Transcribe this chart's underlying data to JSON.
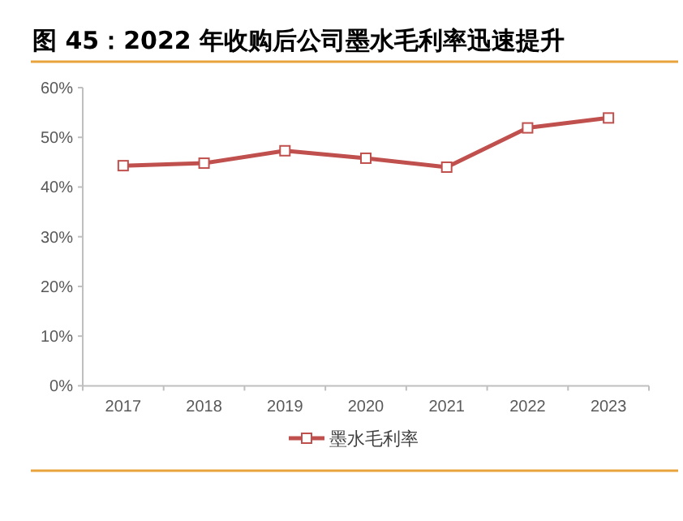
{
  "chart_data": {
    "type": "line",
    "title": "图 45：2022 年收购后公司墨水毛利率迅速提升",
    "categories": [
      "2017",
      "2018",
      "2019",
      "2020",
      "2021",
      "2022",
      "2023"
    ],
    "series": [
      {
        "name": "墨水毛利率",
        "color": "#c0504d",
        "values": [
          44.3,
          44.8,
          47.3,
          45.8,
          44.0,
          51.9,
          53.9
        ]
      }
    ],
    "ylim": [
      0,
      60
    ],
    "yticks": [
      {
        "value": 0,
        "label": "0%"
      },
      {
        "value": 10,
        "label": "10%"
      },
      {
        "value": 20,
        "label": "20%"
      },
      {
        "value": 30,
        "label": "30%"
      },
      {
        "value": 40,
        "label": "40%"
      },
      {
        "value": 50,
        "label": "50%"
      },
      {
        "value": 60,
        "label": "60%"
      }
    ],
    "marker": "square",
    "line_style": "solid",
    "legend": "bottom",
    "grid": false
  }
}
